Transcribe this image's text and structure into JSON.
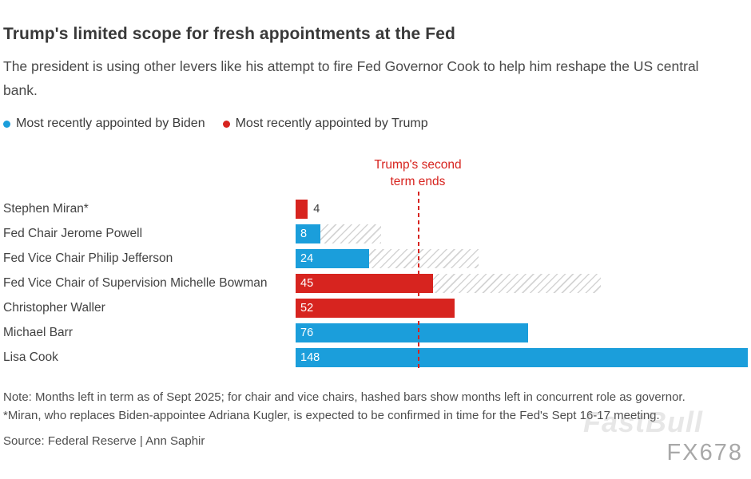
{
  "title": "Trump's limited scope for fresh appointments at the Fed",
  "subtitle": "The president is using other levers like his attempt to fire Fed Governor Cook to help him reshape the US central bank.",
  "legend": [
    {
      "label": "Most recently appointed by Biden",
      "color": "#1b9edb"
    },
    {
      "label": "Most recently appointed by Trump",
      "color": "#d7241f"
    }
  ],
  "annotation": {
    "line1": "Trump's second",
    "line2": "term ends",
    "month": 40
  },
  "chart_data": {
    "type": "bar",
    "orientation": "horizontal",
    "unit": "months left in term",
    "xlim": [
      0,
      148
    ],
    "colors": {
      "biden": "#1b9edb",
      "trump": "#d7241f"
    },
    "rows": [
      {
        "label": "Stephen Miran*",
        "value": 4,
        "party": "trump",
        "value_label_position": "outside"
      },
      {
        "label": "Fed Chair Jerome Powell",
        "value": 8,
        "party": "biden",
        "hatch_to": 28
      },
      {
        "label": "Fed Vice Chair Philip Jefferson",
        "value": 24,
        "party": "biden",
        "hatch_to": 60
      },
      {
        "label": "Fed Vice Chair of Supervision Michelle Bowman",
        "value": 45,
        "party": "trump",
        "hatch_to": 100
      },
      {
        "label": "Christopher Waller",
        "value": 52,
        "party": "trump"
      },
      {
        "label": "Michael Barr",
        "value": 76,
        "party": "biden"
      },
      {
        "label": "Lisa Cook",
        "value": 148,
        "party": "biden"
      }
    ]
  },
  "notes": {
    "line1": "Note: Months left in term as of Sept 2025; for chair and vice chairs, hashed bars show months left in concurrent role as governor.",
    "line2": "*Miran, who replaces Biden-appointee Adriana Kugler, is expected to be confirmed in time for the Fed's Sept 16-17 meeting."
  },
  "source": "Source: Federal Reserve | Ann Saphir",
  "watermarks": {
    "primary": "FX678",
    "secondary": "FastBull"
  }
}
